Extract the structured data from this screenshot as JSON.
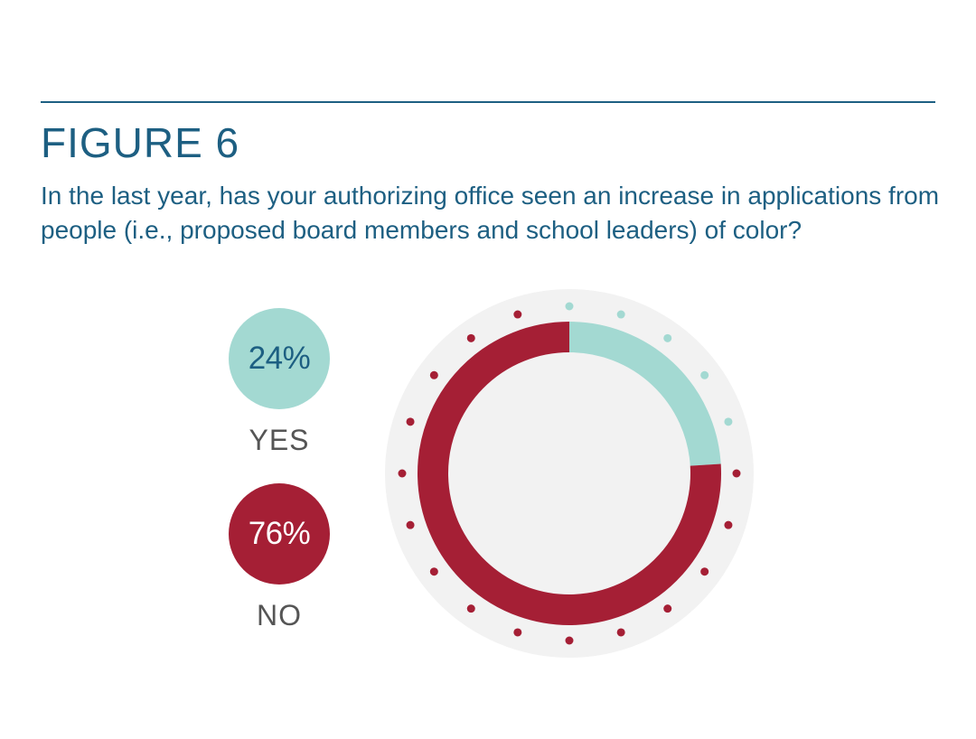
{
  "figure": {
    "title": "FIGURE 6",
    "question": "In the last year, has your authorizing office seen an increase in applications from people (i.e., proposed board members and school leaders) of color?"
  },
  "legend": [
    {
      "label": "YES",
      "value_text": "24%"
    },
    {
      "label": "NO",
      "value_text": "76%"
    }
  ],
  "colors": {
    "accent": "#1d5f82",
    "yes": "#a3d9d2",
    "no": "#a51f35",
    "backdrop": "#f2f2f2",
    "label_gray": "#555555"
  },
  "chart_data": {
    "type": "pie",
    "variant": "donut",
    "title": "In the last year, has your authorizing office seen an increase in applications from people (i.e., proposed board members and school leaders) of color?",
    "categories": [
      "YES",
      "NO"
    ],
    "values": [
      24,
      76
    ],
    "unit": "%",
    "legend_position": "left"
  }
}
